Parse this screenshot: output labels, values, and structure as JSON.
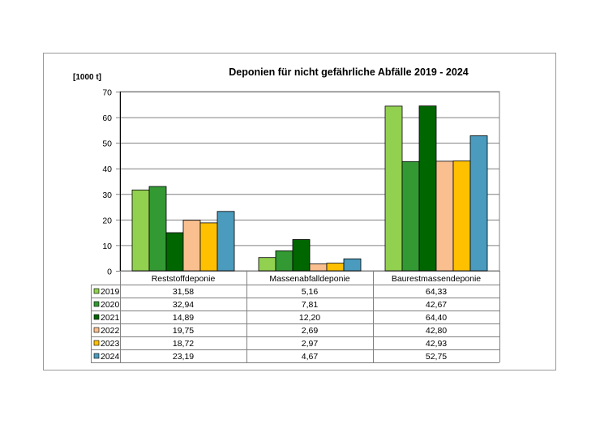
{
  "chart_data": {
    "type": "bar",
    "title": "Deponien für nicht gefährliche Abfälle 2019 - 2024",
    "ylabel": "[1000 t]",
    "xlabel": "",
    "ylim": [
      0,
      70
    ],
    "yticks": [
      0,
      10,
      20,
      30,
      40,
      50,
      60,
      70
    ],
    "grid": true,
    "legend": "data-table",
    "categories": [
      "Reststoffdeponie",
      "Massenabfalldeponie",
      "Baurestmassendeponie"
    ],
    "series": [
      {
        "name": "2019",
        "color": "#92d050",
        "values": [
          31.58,
          5.16,
          64.33
        ],
        "labels": [
          "31,58",
          "5,16",
          "64,33"
        ]
      },
      {
        "name": "2020",
        "color": "#339933",
        "values": [
          32.94,
          7.81,
          42.67
        ],
        "labels": [
          "32,94",
          "7,81",
          "42,67"
        ]
      },
      {
        "name": "2021",
        "color": "#006600",
        "values": [
          14.89,
          12.2,
          64.4
        ],
        "labels": [
          "14,89",
          "12,20",
          "64,40"
        ]
      },
      {
        "name": "2022",
        "color": "#f9bf8f",
        "values": [
          19.75,
          2.69,
          42.8
        ],
        "labels": [
          "19,75",
          "2,69",
          "42,80"
        ]
      },
      {
        "name": "2023",
        "color": "#ffc000",
        "values": [
          18.72,
          2.97,
          42.93
        ],
        "labels": [
          "18,72",
          "2,97",
          "42,93"
        ]
      },
      {
        "name": "2024",
        "color": "#4a9bbd",
        "values": [
          23.19,
          4.67,
          52.75
        ],
        "labels": [
          "23,19",
          "4,67",
          "52,75"
        ]
      }
    ]
  }
}
